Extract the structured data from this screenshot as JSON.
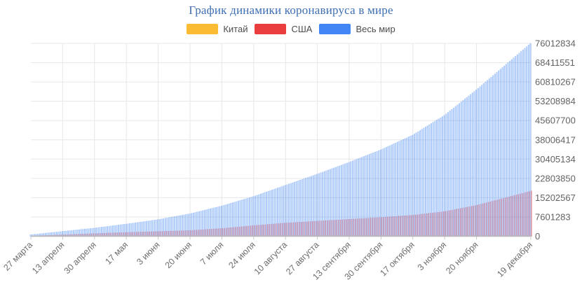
{
  "title": "График динамики коронавируса в мире",
  "legend": {
    "items": [
      {
        "label": "Китай",
        "color": "#FBBC34"
      },
      {
        "label": "США",
        "color": "#EA3E3E"
      },
      {
        "label": "Весь мир",
        "color": "#4285F4"
      }
    ]
  },
  "chart_data": {
    "type": "bar",
    "title": "График динамики коронавируса в мире",
    "xlabel": "",
    "ylabel": "",
    "grid": true,
    "legend_position": "top-center",
    "y_axis_side": "right",
    "ylim": [
      0,
      76012834
    ],
    "y_ticks": [
      0,
      7601283,
      15202567,
      22803850,
      30405134,
      38006417,
      45607700,
      53208984,
      60810267,
      68411551,
      76012834
    ],
    "x_tick_labels": [
      "27 марта",
      "13 апреля",
      "30 апреля",
      "17 мая",
      "3 июня",
      "20 июня",
      "7 июля",
      "24 июля",
      "10 августа",
      "27 августа",
      "13 сентября",
      "30 сентября",
      "17 октября",
      "3 ноября",
      "20 ноября",
      "19 декабря"
    ],
    "x_tick_day_offsets": [
      0,
      17,
      34,
      51,
      68,
      85,
      102,
      119,
      136,
      153,
      170,
      187,
      204,
      221,
      238,
      267
    ],
    "total_days": 268,
    "bar_interval": "daily (bars interpolated between anchor dates)",
    "series": [
      {
        "name": "Китай",
        "color": "#FBBC34",
        "fill_opacity": 0.45,
        "values_at_ticks": [
          81900,
          83300,
          84400,
          84500,
          84600,
          85300,
          85700,
          86000,
          88600,
          89000,
          90100,
          90500,
          91000,
          91500,
          92500,
          95300
        ]
      },
      {
        "name": "США",
        "color": "#EA3E3E",
        "fill_opacity": 0.4,
        "values_at_ticks": [
          104000,
          587000,
          1100000,
          1530000,
          1900000,
          2300000,
          3100000,
          4250000,
          5250000,
          6000000,
          6710000,
          7450000,
          8340000,
          9800000,
          12270000,
          17870000
        ]
      },
      {
        "name": "Весь мир",
        "color": "#4285F4",
        "fill_opacity": 0.32,
        "values_at_ticks": [
          596000,
          1920000,
          3220000,
          4800000,
          6570000,
          8850000,
          11930000,
          15660000,
          20070000,
          24470000,
          29120000,
          34060000,
          39870000,
          47660000,
          57680000,
          76012834
        ]
      }
    ],
    "colors": {
      "grid": "#e7e7e7",
      "axis": "#b7b7b7",
      "tick": "#c9c9c9",
      "y_label_text": "#636363",
      "x_label_text": "#6e6e6e",
      "title_text": "#3e6fb4"
    }
  }
}
